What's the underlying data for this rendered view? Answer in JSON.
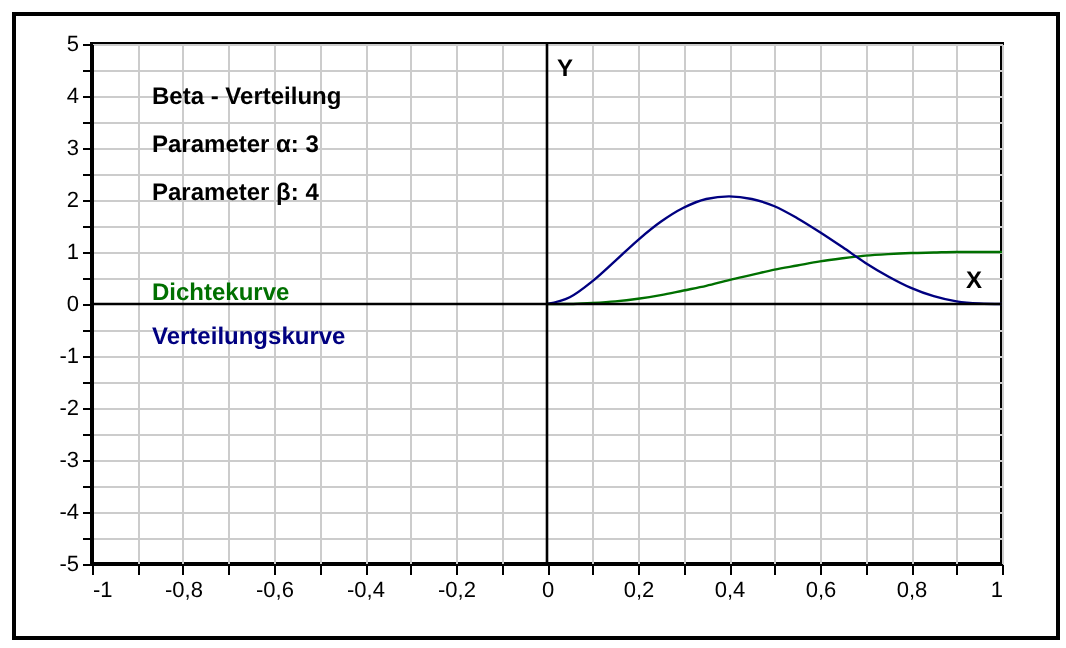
{
  "chart_data": {
    "type": "line",
    "xlabel": "X",
    "ylabel": "Y",
    "annotations": [
      "Beta - Verteilung",
      "Parameter  α: 3",
      "Parameter  β: 4"
    ],
    "x": [
      0,
      0.05,
      0.1,
      0.15,
      0.2,
      0.25,
      0.3,
      0.35,
      0.4,
      0.45,
      0.5,
      0.55,
      0.6,
      0.65,
      0.7,
      0.75,
      0.8,
      0.85,
      0.9,
      0.95,
      1
    ],
    "series": [
      {
        "name": "Dichtekurve",
        "color": "#007000",
        "values": [
          0,
          0,
          0.02,
          0.05,
          0.1,
          0.17,
          0.26,
          0.35,
          0.46,
          0.56,
          0.66,
          0.74,
          0.82,
          0.88,
          0.93,
          0.96,
          0.98,
          0.99,
          1,
          1,
          1
        ]
      },
      {
        "name": "Verteilungskurve",
        "color": "#000080",
        "values": [
          0,
          0.13,
          0.44,
          0.83,
          1.23,
          1.58,
          1.85,
          2.02,
          2.07,
          2.02,
          1.88,
          1.65,
          1.38,
          1.09,
          0.79,
          0.53,
          0.31,
          0.15,
          0.05,
          0.01,
          0
        ]
      }
    ],
    "xlim": [
      -1,
      1
    ],
    "xticks": [
      {
        "value": -1,
        "label": "-1"
      },
      {
        "value": -0.9,
        "label": null
      },
      {
        "value": -0.8,
        "label": "-0,8"
      },
      {
        "value": -0.7,
        "label": null
      },
      {
        "value": -0.6,
        "label": "-0,6"
      },
      {
        "value": -0.5,
        "label": null
      },
      {
        "value": -0.4,
        "label": "-0,4"
      },
      {
        "value": -0.3,
        "label": null
      },
      {
        "value": -0.2,
        "label": "-0,2"
      },
      {
        "value": -0.1,
        "label": null
      },
      0,
      {
        "value": 0.1,
        "label": null
      },
      {
        "value": 0.2,
        "label": "0,2"
      },
      {
        "value": 0.3,
        "label": null
      },
      {
        "value": 0.4,
        "label": "0,4"
      },
      {
        "value": 0.5,
        "label": null
      },
      {
        "value": 0.6,
        "label": "0,6"
      },
      {
        "value": 0.7,
        "label": null
      },
      {
        "value": 0.8,
        "label": "0,8"
      },
      {
        "value": 0.9,
        "label": null
      },
      1
    ],
    "ylim": [
      -5,
      5
    ],
    "yticks": [
      -5,
      {
        "value": -4.5,
        "label": null
      },
      -4,
      {
        "value": -3.5,
        "label": null
      },
      -3,
      {
        "value": -2.5,
        "label": null
      },
      -2,
      {
        "value": -1.5,
        "label": null
      },
      -1,
      {
        "value": -0.5,
        "label": null
      },
      0,
      {
        "value": 0.5,
        "label": null
      },
      1,
      {
        "value": 1.5,
        "label": null
      },
      2,
      {
        "value": 2.5,
        "label": null
      },
      3,
      {
        "value": 3.5,
        "label": null
      },
      4,
      {
        "value": 4.5,
        "label": null
      },
      5
    ],
    "grid": true
  }
}
